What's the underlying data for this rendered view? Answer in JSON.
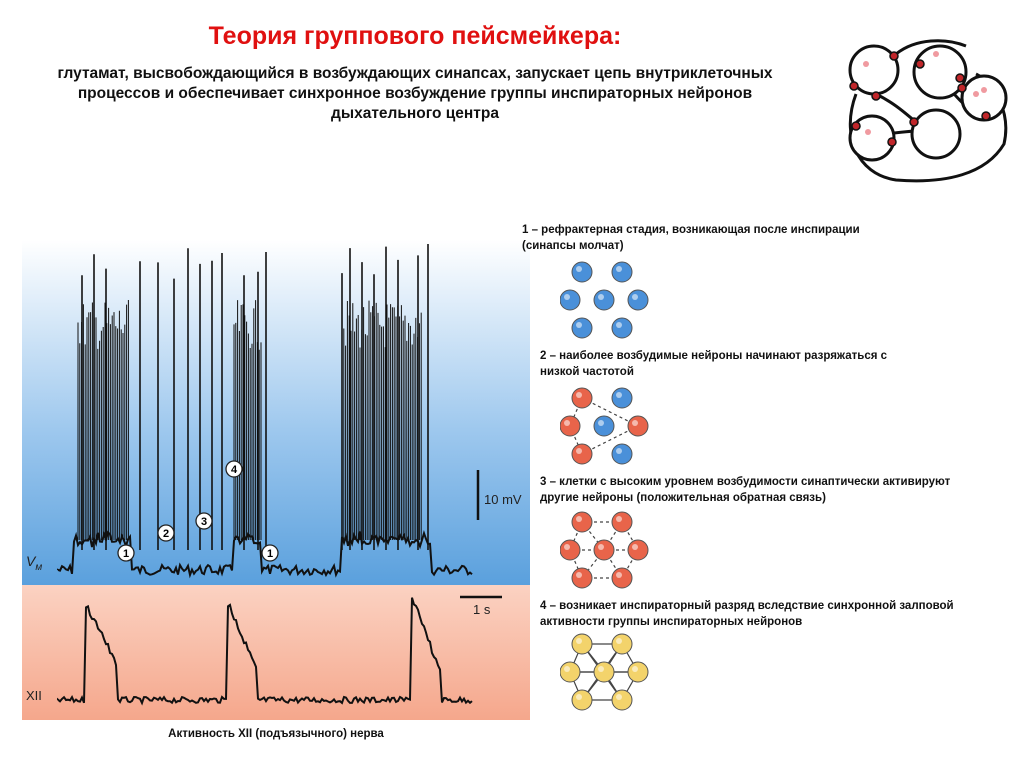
{
  "header": {
    "title": "Теория группового пейсмейкера:",
    "subtitle_lines": [
      "глутамат, высвобождающийся в возбуждающих синапсах, запускает цепь внутриклеточных",
      "процессов и обеспечивает синхронное возбуждение группы инспираторных нейронов",
      "дыхательного центра"
    ]
  },
  "trace": {
    "vm_label": "V",
    "vm_sub": "м",
    "xii_label": "XII",
    "scale_voltage": "10 mV",
    "scale_time": "1 s",
    "markers": [
      "1",
      "2",
      "3",
      "4",
      "1"
    ],
    "caption": "Активность XII (подъязычного) нерва",
    "colors": {
      "top_blue": "#5aa0dd",
      "bottom_red": "#f08c70"
    }
  },
  "steps": [
    {
      "lines": [
        "1 – рефрактерная стадия, возникающая после инспирации",
        "(синапсы молчат)"
      ],
      "color": "#4a90d9"
    },
    {
      "lines": [
        "2 – наиболее возбудимые нейроны  начинают разряжаться с",
        "низкой частотой"
      ],
      "color": "#e8644a"
    },
    {
      "lines": [
        "3 – клетки с высоким уровнем возбудимости  синаптически активируют",
        "другие нейроны (положительная обратная связь)"
      ],
      "color": "#e8644a"
    },
    {
      "lines": [
        "4 – возникает инспираторный разряд вследствие синхронной залповой",
        "активности группы инспираторных нейронов"
      ],
      "color": "#f3d36b"
    }
  ]
}
